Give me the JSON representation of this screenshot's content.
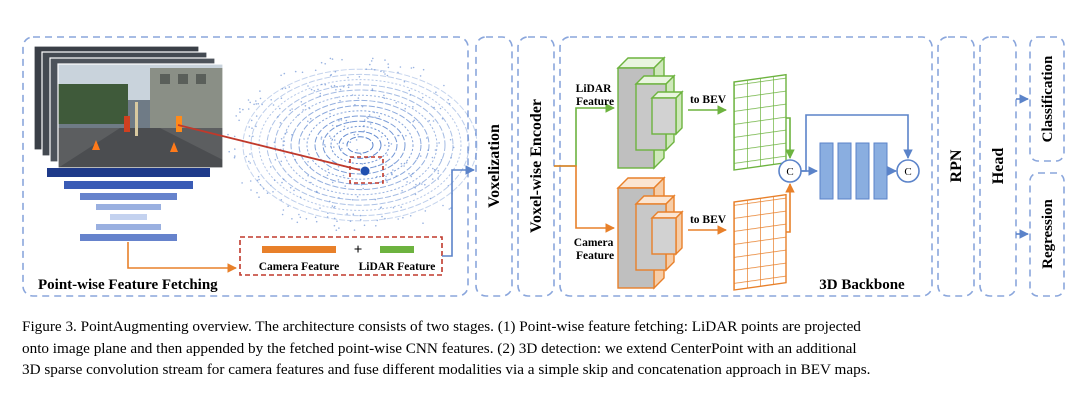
{
  "diagram": {
    "labels": {
      "pointwise_block": "Point-wise Feature Fetching",
      "camera_feature": "Camera Feature",
      "plus": "+",
      "lidar_feature": "LiDAR Feature",
      "voxelization": "Voxelization",
      "encoder": "Voxel-wise Encoder",
      "lidar_branch": [
        "LiDAR",
        "Feature"
      ],
      "camera_branch": [
        "Camera",
        "Feature"
      ],
      "to_bev_1": "to BEV",
      "to_bev_2": "to BEV",
      "concat_1": "C",
      "concat_2": "C",
      "backbone": "3D Backbone",
      "rpn": "RPN",
      "head": "Head",
      "classification": "Classification",
      "regression": "Regression"
    },
    "colors": {
      "dashed_border": "#8aa6dc",
      "arrow_blue": "#5b83c9",
      "lidar_green": "#6db33f",
      "camera_orange": "#e8802a",
      "highlight_red": "#c0392b",
      "bev_blocks": "#8aaee0"
    }
  },
  "caption": {
    "lines": [
      "Figure 3. PointAugmenting overview. The architecture consists of two stages. (1) Point-wise feature fetching: LiDAR points are projected",
      "onto image plane and then appended by the fetched point-wise CNN features. (2) 3D detection: we extend CenterPoint with an additional",
      "3D sparse convolution stream for camera features and fuse different modalities via a simple skip and concatenation approach in BEV maps."
    ]
  }
}
